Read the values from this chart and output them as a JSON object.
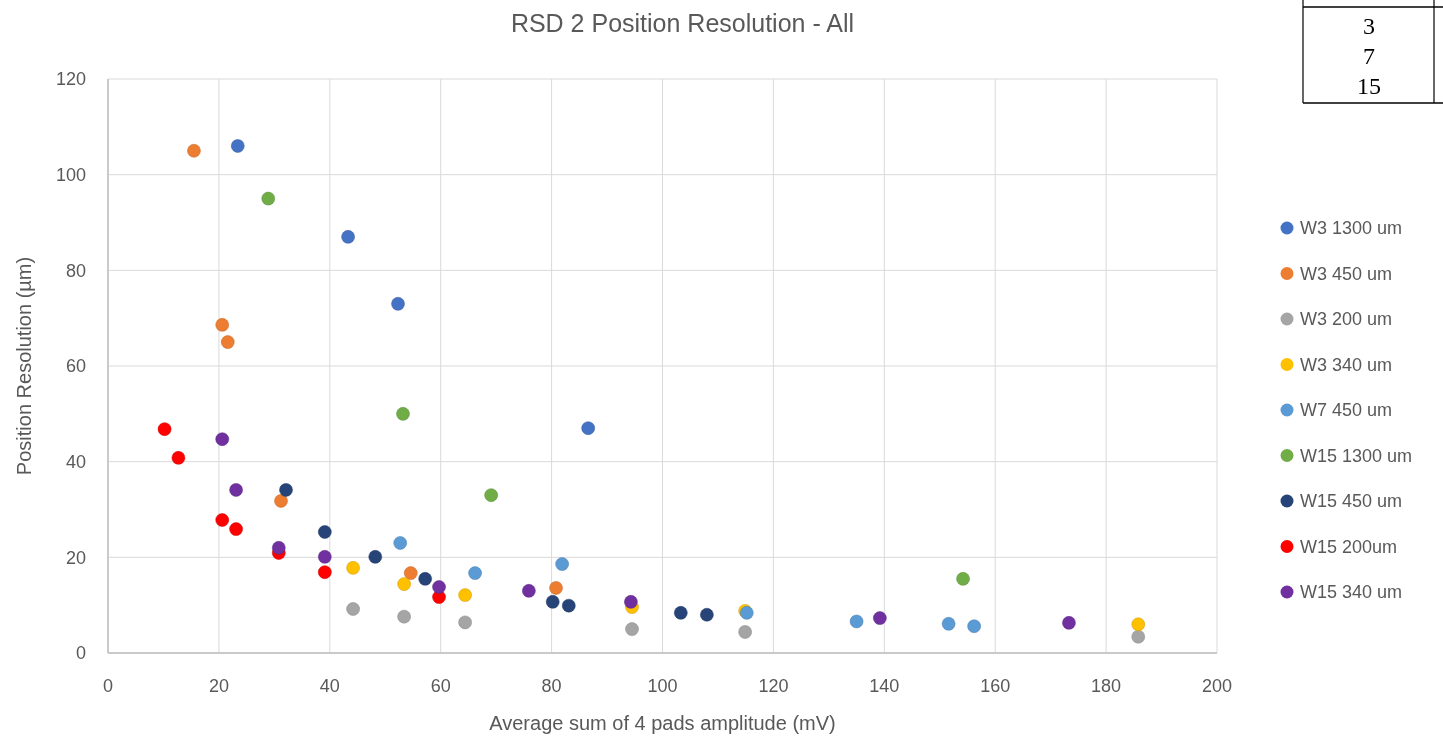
{
  "chart_data": {
    "type": "scatter",
    "title": "RSD 2 Position Resolution - All",
    "xlabel": "Average sum of 4 pads amplitude (mV)",
    "ylabel": "Position Resolution (µm)",
    "xlim": [
      0,
      200
    ],
    "xticks": [
      0,
      20,
      40,
      60,
      80,
      100,
      120,
      140,
      160,
      180,
      200
    ],
    "ylim": [
      0,
      120
    ],
    "yticks": [
      0,
      20,
      40,
      60,
      80,
      100,
      120
    ],
    "grid": true,
    "legend": "right",
    "marker": "circle",
    "annotations": [
      "3",
      "7",
      "15"
    ],
    "series": [
      {
        "name": "W3 1300 um",
        "color": "#4472c4",
        "x": [
          23.4,
          43.3,
          52.3,
          86.6
        ],
        "values": [
          106,
          87,
          73,
          47
        ]
      },
      {
        "name": "W3 450 um",
        "color": "#ed7d31",
        "x": [
          15.5,
          20.6,
          21.6,
          31.2,
          54.6,
          80.8
        ],
        "values": [
          105,
          68.6,
          65,
          31.8,
          16.7,
          13.6
        ]
      },
      {
        "name": "W3 200 um",
        "color": "#a5a5a5",
        "x": [
          44.2,
          53.4,
          64.4,
          94.5,
          114.9,
          185.8
        ],
        "values": [
          9.2,
          7.6,
          6.4,
          5,
          4.4,
          3.4
        ]
      },
      {
        "name": "W3 340 um",
        "color": "#ffc000",
        "x": [
          44.2,
          53.4,
          64.4,
          94.5,
          114.9,
          185.8
        ],
        "values": [
          17.8,
          14.4,
          12.1,
          9.6,
          8.8,
          6
        ]
      },
      {
        "name": "W7 450 um",
        "color": "#5b9bd5",
        "x": [
          52.7,
          66.2,
          81.9,
          115.2,
          135,
          151.6,
          156.2
        ],
        "values": [
          23,
          16.7,
          18.6,
          8.4,
          6.6,
          6.1,
          5.6
        ]
      },
      {
        "name": "W15 1300 um",
        "color": "#70ad47",
        "x": [
          28.9,
          53.2,
          69.1,
          154.2
        ],
        "values": [
          95,
          50,
          33,
          15.5
        ]
      },
      {
        "name": "W15 450 um",
        "color": "#264478",
        "x": [
          32.1,
          39.1,
          48.2,
          57.2,
          80.2,
          83.1,
          103.3,
          108
        ],
        "values": [
          34.1,
          25.3,
          20.1,
          15.5,
          10.7,
          9.9,
          8.4,
          8
        ]
      },
      {
        "name": "W15 200um",
        "color": "#ff0000",
        "x": [
          10.2,
          12.7,
          20.6,
          23.1,
          30.8,
          39.1,
          59.7
        ],
        "values": [
          46.8,
          40.8,
          27.8,
          25.9,
          20.9,
          16.9,
          11.7
        ]
      },
      {
        "name": "W15 340 um",
        "color": "#7030a0",
        "x": [
          20.6,
          23.1,
          30.8,
          39.1,
          59.7,
          75.9,
          94.3,
          139.2,
          173.3
        ],
        "values": [
          44.7,
          34.1,
          22,
          20.1,
          13.8,
          13,
          10.7,
          7.3,
          6.3
        ]
      }
    ]
  }
}
